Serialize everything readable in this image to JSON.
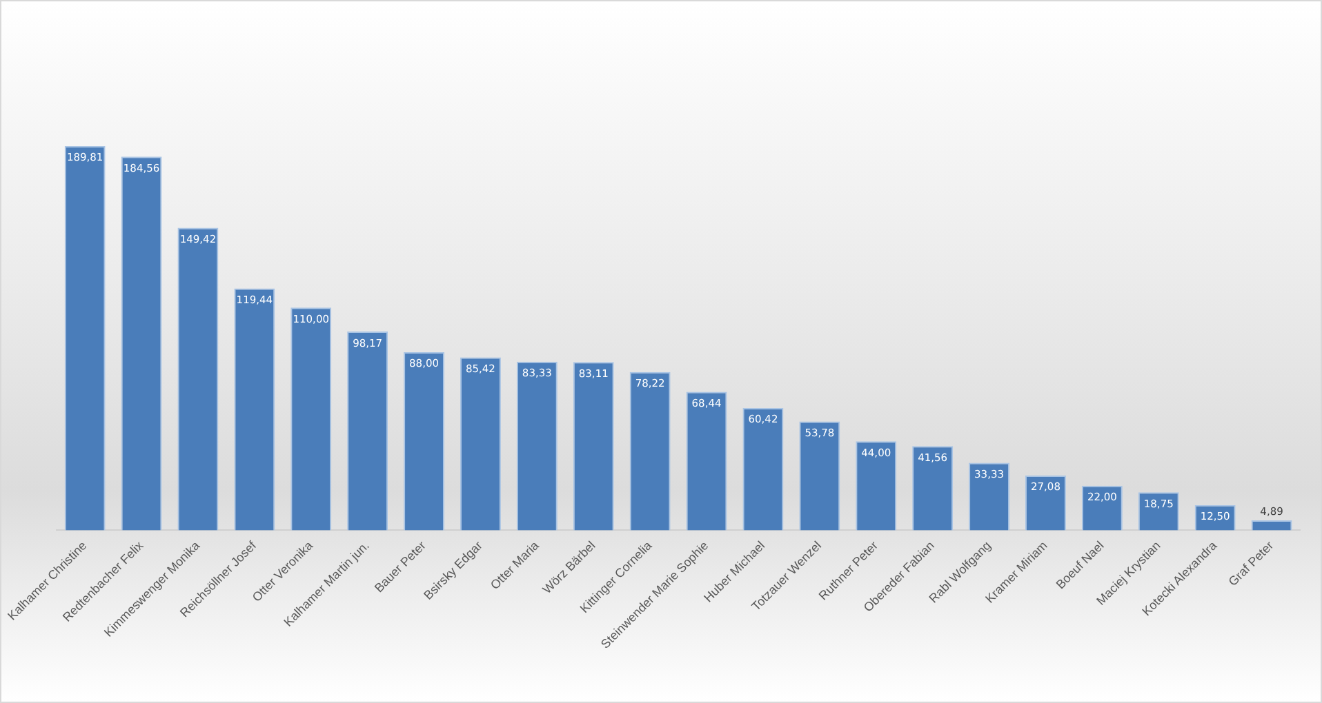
{
  "chart_data": {
    "type": "bar",
    "categories": [
      "Kalhamer Christine",
      "Redtenbacher Felix",
      "Kimmeswenger Monika",
      "Reichsöllner Josef",
      "Otter Veronika",
      "Kalhamer Martin jun.",
      "Bauer Peter",
      "Bsirsky Edgar",
      "Otter Maria",
      "Wörz Bärbel",
      "Kittinger Cornelia",
      "Steinwender Marie Sophie",
      "Huber Michael",
      "Totzauer Wenzel",
      "Ruthner Peter",
      "Obereder Fabian",
      "Rabl Wolfgang",
      "Kramer Miriam",
      "Boeuf Nael",
      "Maciej Krystian",
      "Kotecki Alexandra",
      "Graf Peter"
    ],
    "values": [
      189.81,
      184.56,
      149.42,
      119.44,
      110.0,
      98.17,
      88.0,
      85.42,
      83.33,
      83.11,
      78.22,
      68.44,
      60.42,
      53.78,
      44.0,
      41.56,
      33.33,
      27.08,
      22.0,
      18.75,
      12.5,
      4.89
    ],
    "value_labels": [
      "189,81",
      "184,56",
      "149,42",
      "119,44",
      "110,00",
      "98,17",
      "88,00",
      "85,42",
      "83,33",
      "83,11",
      "78,22",
      "68,44",
      "60,42",
      "53,78",
      "44,00",
      "41,56",
      "33,33",
      "27,08",
      "22,00",
      "18,75",
      "12,50",
      "4,89"
    ],
    "color": "#4a7dba",
    "grid": false,
    "legend": false
  }
}
